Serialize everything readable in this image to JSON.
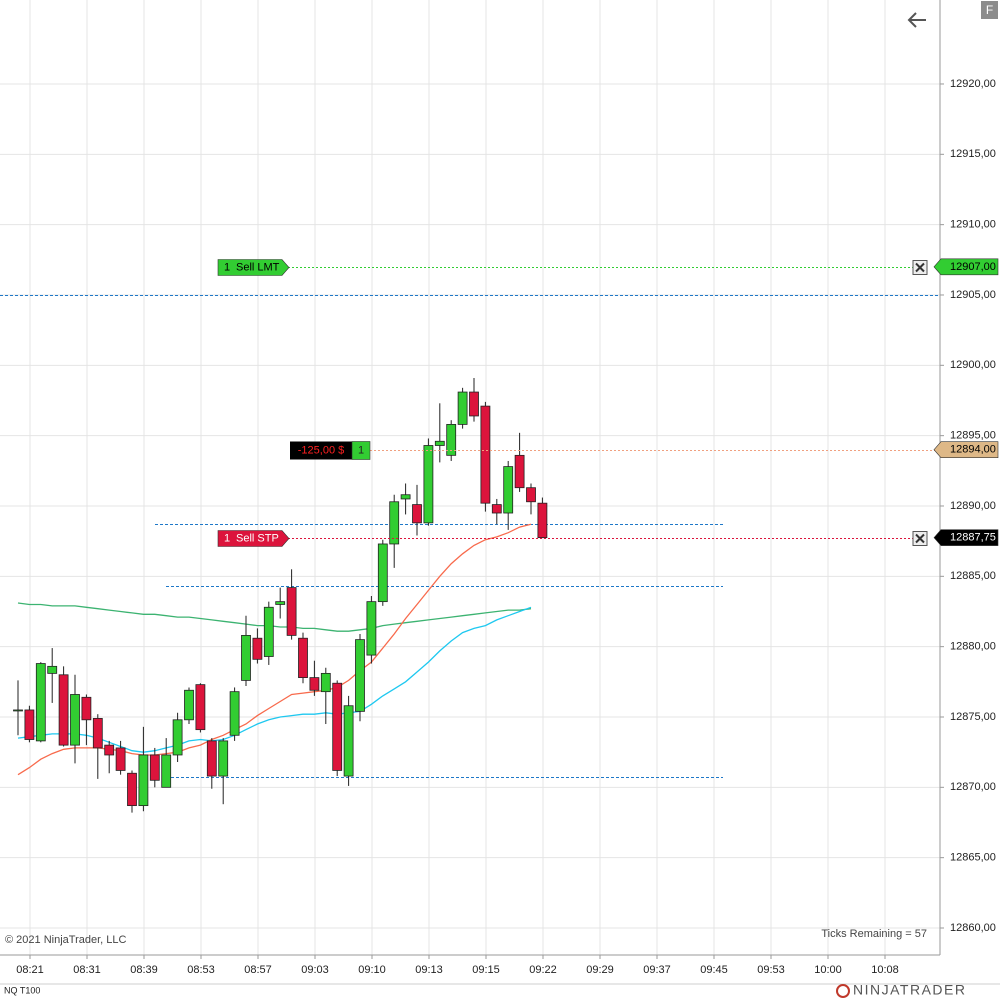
{
  "chart_data": {
    "type": "candlestick",
    "instrument": "NQ T100",
    "copyright": "© 2021 NinjaTrader, LLC",
    "ticks_remaining": "Ticks Remaining = 57",
    "brand": "NINJATRADER",
    "button": "F",
    "xtick_labels": [
      "08:21",
      "08:31",
      "08:39",
      "08:53",
      "08:57",
      "09:03",
      "09:10",
      "09:13",
      "09:15",
      "09:22",
      "09:29",
      "09:37",
      "09:45",
      "09:53",
      "10:00",
      "10:08"
    ],
    "ylim": [
      12858.08,
      12925.97
    ],
    "yticks": [
      {
        "value": 12860,
        "label": "12860,00"
      },
      {
        "value": 12865,
        "label": "12865,00"
      },
      {
        "value": 12870,
        "label": "12870,00"
      },
      {
        "value": 12875,
        "label": "12875,00"
      },
      {
        "value": 12880,
        "label": "12880,00"
      },
      {
        "value": 12885,
        "label": "12885,00"
      },
      {
        "value": 12890,
        "label": "12890,00"
      },
      {
        "value": 12895,
        "label": "12895,00"
      },
      {
        "value": 12900,
        "label": "12900,00"
      },
      {
        "value": 12905,
        "label": "12905,00"
      },
      {
        "value": 12910,
        "label": "12910,00"
      },
      {
        "value": 12915,
        "label": "12915,00"
      },
      {
        "value": 12920,
        "label": "12920,00"
      }
    ],
    "grid": true,
    "up_color": "#32cd32",
    "down_color": "#dc143c",
    "open": [
      12875.5,
      12875.5,
      12873.3,
      12878.1,
      12878.0,
      12873.0,
      12876.4,
      12874.9,
      12873.0,
      12872.8,
      12871.0,
      12868.7,
      12872.3,
      12870.0,
      12872.3,
      12874.8,
      12877.3,
      12873.3,
      12870.8,
      12873.7,
      12877.6,
      12880.6,
      12879.3,
      12883.0,
      12884.2,
      12880.6,
      12877.8,
      12876.8,
      12877.4,
      12870.8,
      12875.4,
      12879.4,
      12883.2,
      12887.3,
      12890.5,
      12890.1,
      12888.8,
      12894.3,
      12893.6,
      12895.8,
      12898.1,
      12897.1,
      12890.1,
      12889.5,
      12893.6,
      12891.3,
      12890.2
    ],
    "high": [
      12877.6,
      12875.8,
      12878.9,
      12879.9,
      12878.6,
      12878.0,
      12876.6,
      12875.2,
      12873.3,
      12873.3,
      12871.2,
      12874.3,
      12872.8,
      12873.5,
      12875.3,
      12877.1,
      12877.4,
      12873.5,
      12873.5,
      12877.1,
      12882.2,
      12881.3,
      12883.2,
      12884.2,
      12885.5,
      12881.0,
      12879.0,
      12878.5,
      12877.6,
      12876.5,
      12880.9,
      12883.6,
      12887.6,
      12890.8,
      12891.6,
      12891.5,
      12894.8,
      12897.3,
      12896.1,
      12898.4,
      12899.1,
      12897.4,
      12890.5,
      12893.2,
      12895.2,
      12891.6,
      12890.6
    ],
    "low": [
      12873.7,
      12873.2,
      12873.2,
      12876.0,
      12872.9,
      12871.7,
      12873.0,
      12870.6,
      12871.0,
      12870.9,
      12868.2,
      12868.3,
      12870.0,
      12870.0,
      12871.8,
      12874.5,
      12873.9,
      12869.9,
      12868.8,
      12873.3,
      12877.2,
      12878.8,
      12878.7,
      12882.0,
      12880.5,
      12877.4,
      12876.5,
      12874.5,
      12870.8,
      12870.1,
      12874.7,
      12878.8,
      12882.9,
      12885.6,
      12889.4,
      12887.9,
      12888.6,
      12893.1,
      12893.2,
      12895.5,
      12896.0,
      12889.6,
      12888.7,
      12888.3,
      12891.0,
      12889.4,
      12887.75
    ],
    "close": [
      12875.5,
      12873.4,
      12878.8,
      12878.6,
      12873.0,
      12876.6,
      12874.8,
      12872.8,
      12872.3,
      12871.2,
      12868.7,
      12872.3,
      12870.5,
      12872.3,
      12874.8,
      12876.9,
      12874.1,
      12870.8,
      12873.3,
      12876.8,
      12880.8,
      12879.1,
      12882.8,
      12883.2,
      12880.8,
      12877.8,
      12876.9,
      12878.1,
      12871.2,
      12875.8,
      12880.5,
      12883.2,
      12887.3,
      12890.3,
      12890.8,
      12888.8,
      12894.3,
      12894.6,
      12895.8,
      12898.1,
      12896.4,
      12890.2,
      12889.5,
      12892.8,
      12891.3,
      12890.3,
      12887.75
    ],
    "indicators": [
      {
        "color": "#3cb371",
        "values": [
          12883.1,
          12883.0,
          12883.0,
          12882.9,
          12882.9,
          12882.9,
          12882.8,
          12882.7,
          12882.6,
          12882.5,
          12882.4,
          12882.3,
          12882.3,
          12882.2,
          12882.1,
          12882.1,
          12882.0,
          12881.9,
          12881.8,
          12881.7,
          12881.6,
          12881.5,
          12881.5,
          12881.4,
          12881.4,
          12881.3,
          12881.3,
          12881.2,
          12881.1,
          12881.1,
          12881.2,
          12881.3,
          12881.5,
          12881.6,
          12881.7,
          12881.8,
          12881.9,
          12882.0,
          12882.1,
          12882.2,
          12882.3,
          12882.4,
          12882.5,
          12882.6,
          12882.6,
          12882.7,
          null
        ]
      },
      {
        "color": "#1ec8f0",
        "values": [
          12873.5,
          12873.6,
          12873.7,
          12873.8,
          12873.8,
          12873.8,
          12873.7,
          12873.5,
          12873.2,
          12872.9,
          12872.6,
          12872.5,
          12872.6,
          12872.8,
          12873.0,
          12873.3,
          12873.4,
          12873.3,
          12873.4,
          12873.7,
          12874.1,
          12874.5,
          12874.8,
          12875.0,
          12875.1,
          12875.2,
          12875.2,
          12875.3,
          12875.2,
          12875.3,
          12875.4,
          12875.9,
          12876.5,
          12877.0,
          12877.5,
          12878.2,
          12878.9,
          12879.7,
          12880.4,
          12881.0,
          12881.3,
          12881.5,
          12881.9,
          12882.2,
          12882.5,
          12882.8,
          null
        ]
      },
      {
        "color": "#f86a4c",
        "values": [
          12870.9,
          12871.4,
          12872.0,
          12872.4,
          12872.7,
          12872.8,
          12872.8,
          12872.8,
          12872.7,
          12872.6,
          12872.4,
          12872.3,
          12872.3,
          12872.4,
          12872.5,
          12872.8,
          12873.0,
          12873.4,
          12873.7,
          12874.1,
          12874.5,
          12875.1,
          12875.6,
          12876.1,
          12876.6,
          12876.7,
          12876.8,
          12876.9,
          12877.1,
          12877.6,
          12878.3,
          12878.9,
          12879.9,
          12880.9,
          12882.0,
          12883.0,
          12884.0,
          12885.0,
          12885.9,
          12886.6,
          12887.2,
          12887.6,
          12887.8,
          12888.1,
          12888.5,
          12888.7,
          null
        ]
      }
    ],
    "lines": [
      {
        "value": 12905.0,
        "color": "#1e78c8"
      },
      {
        "value": 12888.75,
        "color": "#1e78c8"
      },
      {
        "value": 12884.3,
        "color": "#1e78c8"
      },
      {
        "value": 12870.75,
        "color": "#1e78c8"
      }
    ],
    "orders": [
      {
        "quantity": 1,
        "label": "Sell LMT",
        "color": "#32cd32",
        "price": {
          "value": 12907.0,
          "label": "12907,00"
        }
      },
      {
        "quantity": 1,
        "label": "Sell STP",
        "color": "#dc143c",
        "price": {
          "value": 12887.75,
          "label": "12887,75"
        }
      }
    ],
    "position": {
      "quantity": 1,
      "pnl": -125,
      "pnl_label": "-125,00 $",
      "color": "#deb887",
      "price": {
        "value": 12894.0,
        "label": "12894,00"
      }
    },
    "last_price": {
      "value": 12887.75,
      "label": "12887,75"
    }
  }
}
